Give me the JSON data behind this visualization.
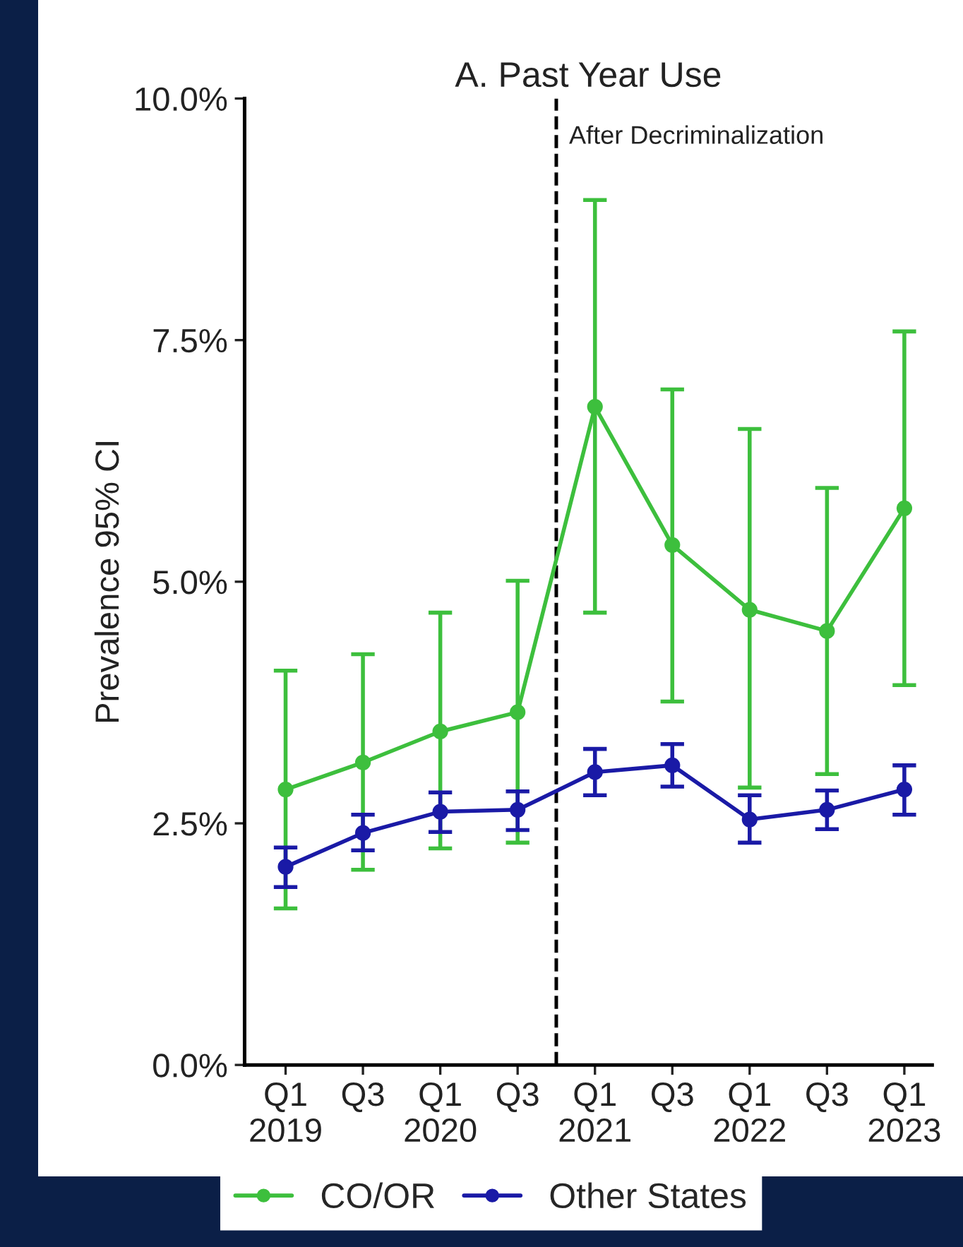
{
  "chart_data": {
    "type": "line",
    "title": "A. Past Year Use",
    "ylabel": "Prevalence 95% CI",
    "categories": [
      "Q1\n2019",
      "Q3",
      "Q1\n2020",
      "Q3",
      "Q1\n2021",
      "Q3",
      "Q1\n2022",
      "Q3",
      "Q1\n2023"
    ],
    "ylim": [
      0,
      10
    ],
    "yticks": [
      {
        "value": 0,
        "label": "0.0%"
      },
      {
        "value": 2.5,
        "label": "2.5%"
      },
      {
        "value": 5,
        "label": "5.0%"
      },
      {
        "value": 7.5,
        "label": "7.5%"
      },
      {
        "value": 10,
        "label": "10.0%"
      }
    ],
    "series": [
      {
        "name": "CO/OR",
        "color": "#3dbf3d",
        "values": [
          2.85,
          3.13,
          3.45,
          3.65,
          6.81,
          5.38,
          4.71,
          4.49,
          5.76
        ],
        "errors": [
          [
            1.62,
            4.08
          ],
          [
            2.02,
            4.25
          ],
          [
            2.24,
            4.68
          ],
          [
            2.3,
            5.01
          ],
          [
            4.68,
            8.95
          ],
          [
            3.76,
            6.99
          ],
          [
            2.87,
            6.58
          ],
          [
            3.01,
            5.97
          ],
          [
            3.93,
            7.59
          ]
        ]
      },
      {
        "name": "Other States",
        "color": "#1a1aa6",
        "values": [
          2.05,
          2.4,
          2.62,
          2.64,
          3.03,
          3.1,
          2.54,
          2.64,
          2.85
        ],
        "errors": [
          [
            1.84,
            2.25
          ],
          [
            2.22,
            2.59
          ],
          [
            2.41,
            2.82
          ],
          [
            2.43,
            2.83
          ],
          [
            2.79,
            3.27
          ],
          [
            2.88,
            3.32
          ],
          [
            2.3,
            2.79
          ],
          [
            2.44,
            2.84
          ],
          [
            2.59,
            3.1
          ]
        ]
      }
    ],
    "annotations": [
      "After Decriminalization"
    ],
    "marker": "circle",
    "line_style": "solid",
    "grid": false,
    "legend": "bottom"
  }
}
